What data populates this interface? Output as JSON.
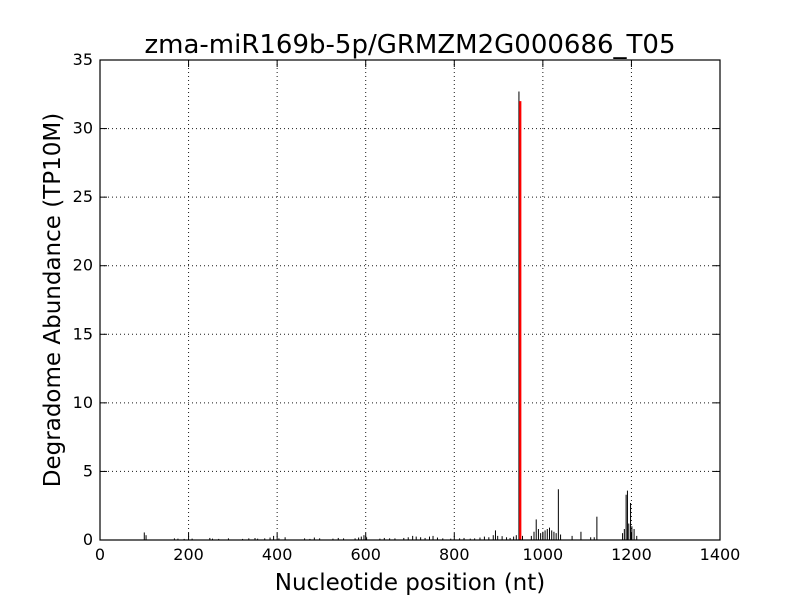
{
  "chart_data": {
    "type": "bar",
    "title": "zma-miR169b-5p/GRMZM2G000686_T05",
    "xlabel": "Nucleotide position (nt)",
    "ylabel": "Degradome Abundance (TP10M)",
    "xlim": [
      0,
      1400
    ],
    "ylim": [
      0,
      35
    ],
    "x_ticks": [
      0,
      200,
      400,
      600,
      800,
      1000,
      1200,
      1400
    ],
    "y_ticks": [
      0,
      5,
      10,
      15,
      20,
      25,
      30,
      35
    ],
    "grid": true,
    "colors": {
      "background": "#ffffff",
      "axis": "#000000",
      "series": "#000000",
      "highlight": "#ff0000"
    },
    "series": [
      {
        "values": [
          [
            100,
            0.55
          ],
          [
            104,
            0.35
          ],
          [
            168,
            0.12
          ],
          [
            176,
            0.1
          ],
          [
            190,
            0.08
          ],
          [
            208,
            0.1
          ],
          [
            248,
            0.15
          ],
          [
            254,
            0.1
          ],
          [
            268,
            0.08
          ],
          [
            290,
            0.12
          ],
          [
            322,
            0.08
          ],
          [
            336,
            0.12
          ],
          [
            350,
            0.15
          ],
          [
            356,
            0.1
          ],
          [
            372,
            0.12
          ],
          [
            384,
            0.18
          ],
          [
            392,
            0.3
          ],
          [
            404,
            0.12
          ],
          [
            418,
            0.2
          ],
          [
            462,
            0.12
          ],
          [
            474,
            0.08
          ],
          [
            484,
            0.18
          ],
          [
            496,
            0.12
          ],
          [
            526,
            0.1
          ],
          [
            538,
            0.15
          ],
          [
            550,
            0.12
          ],
          [
            576,
            0.12
          ],
          [
            584,
            0.18
          ],
          [
            590,
            0.25
          ],
          [
            596,
            0.35
          ],
          [
            602,
            0.2
          ],
          [
            632,
            0.1
          ],
          [
            642,
            0.15
          ],
          [
            654,
            0.12
          ],
          [
            666,
            0.12
          ],
          [
            686,
            0.15
          ],
          [
            696,
            0.2
          ],
          [
            706,
            0.3
          ],
          [
            714,
            0.25
          ],
          [
            724,
            0.2
          ],
          [
            734,
            0.15
          ],
          [
            744,
            0.25
          ],
          [
            752,
            0.3
          ],
          [
            762,
            0.18
          ],
          [
            774,
            0.12
          ],
          [
            792,
            0.1
          ],
          [
            812,
            0.12
          ],
          [
            822,
            0.15
          ],
          [
            836,
            0.1
          ],
          [
            846,
            0.12
          ],
          [
            858,
            0.18
          ],
          [
            868,
            0.25
          ],
          [
            878,
            0.2
          ],
          [
            888,
            0.35
          ],
          [
            893,
            0.7
          ],
          [
            898,
            0.3
          ],
          [
            908,
            0.28
          ],
          [
            918,
            0.2
          ],
          [
            926,
            0.15
          ],
          [
            934,
            0.25
          ],
          [
            940,
            0.35
          ],
          [
            946,
            32.7
          ],
          [
            954,
            0.3
          ],
          [
            974,
            0.3
          ],
          [
            980,
            0.6
          ],
          [
            985,
            1.5
          ],
          [
            990,
            0.8
          ],
          [
            995,
            0.5
          ],
          [
            1000,
            0.6
          ],
          [
            1005,
            0.7
          ],
          [
            1010,
            0.8
          ],
          [
            1015,
            0.9
          ],
          [
            1020,
            0.7
          ],
          [
            1025,
            0.6
          ],
          [
            1030,
            0.5
          ],
          [
            1035,
            3.7
          ],
          [
            1040,
            0.4
          ],
          [
            1066,
            0.3
          ],
          [
            1086,
            0.6
          ],
          [
            1108,
            0.2
          ],
          [
            1116,
            0.2
          ],
          [
            1122,
            1.7
          ],
          [
            1180,
            0.5
          ],
          [
            1184,
            0.8
          ],
          [
            1188,
            3.3
          ],
          [
            1191,
            3.6
          ],
          [
            1194,
            1.2
          ],
          [
            1198,
            2.7
          ],
          [
            1201,
            1.0
          ],
          [
            1206,
            0.8
          ],
          [
            1212,
            0.3
          ]
        ]
      }
    ],
    "highlight": {
      "x": 949,
      "y": 32
    }
  }
}
